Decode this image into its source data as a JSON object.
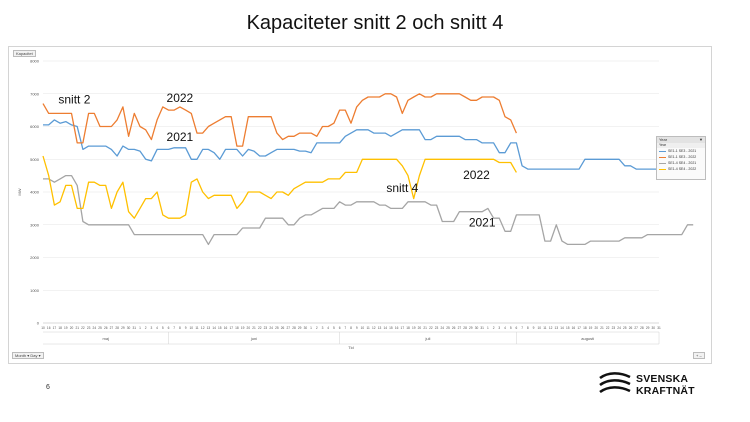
{
  "slide": {
    "title": "Kapaciteter snitt 2 och snitt 4",
    "page_number": "6",
    "logo": {
      "line1": "SVENSKA",
      "line2": "KRAFTNÄT"
    }
  },
  "ui": {
    "sheet_tab": "Kapacitet",
    "field_button": "Month ▾ Day ▾",
    "zoom_button": "+ –",
    "legend_header": "Year",
    "legend_subheader": "Year"
  },
  "chart_data": {
    "type": "line",
    "title": "Kapaciteter snitt 2 och snitt 4",
    "xlabel": "Tid",
    "ylabel": "MW",
    "ylim": [
      0,
      8000
    ],
    "yticks": [
      0,
      1000,
      2000,
      3000,
      4000,
      5000,
      6000,
      7000,
      8000
    ],
    "grid": true,
    "legend": "right",
    "months": [
      {
        "label": "maj",
        "start": 0,
        "end": 22
      },
      {
        "label": "juni",
        "start": 22,
        "end": 52
      },
      {
        "label": "juli",
        "start": 52,
        "end": 83
      },
      {
        "label": "augusti",
        "start": 83,
        "end": 114
      }
    ],
    "x_ticks": [
      "10",
      "16",
      "17",
      "18",
      "19",
      "20",
      "21",
      "22",
      "23",
      "24",
      "25",
      "26",
      "27",
      "28",
      "29",
      "30",
      "31",
      "1",
      "2",
      "3",
      "4",
      "5",
      "6",
      "7",
      "8",
      "9",
      "10",
      "11",
      "12",
      "13",
      "14",
      "15",
      "16",
      "17",
      "18",
      "19",
      "20",
      "21",
      "22",
      "23",
      "24",
      "25",
      "26",
      "27",
      "28",
      "29",
      "30",
      "1",
      "2",
      "3",
      "4",
      "5",
      "6",
      "7",
      "8",
      "9",
      "10",
      "11",
      "12",
      "13",
      "14",
      "15",
      "16",
      "17",
      "18",
      "19",
      "20",
      "21",
      "22",
      "23",
      "24",
      "25",
      "26",
      "27",
      "28",
      "29",
      "30",
      "31",
      "1",
      "2",
      "3",
      "4",
      "5",
      "6",
      "7",
      "8",
      "9",
      "10",
      "11",
      "12",
      "13",
      "14",
      "15",
      "16",
      "17",
      "18",
      "19",
      "20",
      "21",
      "22",
      "23",
      "24",
      "25",
      "26",
      "27",
      "28",
      "29",
      "30",
      "31"
    ],
    "annotations": [
      {
        "text": "snitt 2",
        "x": 5.5,
        "y": 6700
      },
      {
        "text": "2022",
        "x": 24,
        "y": 6750
      },
      {
        "text": "2021",
        "x": 24,
        "y": 5550
      },
      {
        "text": "snitt 4",
        "x": 63,
        "y": 4000
      },
      {
        "text": "2022",
        "x": 76,
        "y": 4400
      },
      {
        "text": "2021",
        "x": 77,
        "y": 2950
      }
    ],
    "series": [
      {
        "name": "SE1-1 SE3 - 2021",
        "color": "#5b9bd5",
        "x": [
          0,
          1,
          2,
          3,
          4,
          5,
          6,
          7,
          8,
          9,
          10,
          11,
          12,
          13,
          14,
          15,
          16,
          17,
          18,
          19,
          20,
          21,
          22,
          23,
          24,
          25,
          26,
          27,
          28,
          29,
          30,
          31,
          32,
          33,
          34,
          35,
          36,
          37,
          38,
          39,
          40,
          41,
          42,
          43,
          44,
          45,
          46,
          47,
          48,
          49,
          50,
          51,
          52,
          53,
          54,
          55,
          56,
          57,
          58,
          59,
          60,
          61,
          62,
          63,
          64,
          65,
          66,
          67,
          68,
          69,
          70,
          71,
          72,
          73,
          74,
          75,
          76,
          77,
          78,
          79,
          80,
          81,
          82,
          83,
          84,
          85,
          86,
          87,
          88,
          89,
          90,
          91,
          92,
          93,
          94,
          95,
          96,
          97,
          98,
          99,
          100,
          101,
          102,
          103,
          104,
          105,
          106,
          107,
          108,
          109,
          110,
          111,
          112,
          113,
          114
        ],
        "values": [
          6050,
          6050,
          6200,
          6100,
          6150,
          6050,
          6000,
          5300,
          5400,
          5400,
          5400,
          5400,
          5300,
          5100,
          5400,
          5300,
          5300,
          5250,
          5000,
          4950,
          5300,
          5300,
          5300,
          5350,
          5350,
          5350,
          5000,
          5000,
          5300,
          5300,
          5200,
          5000,
          5300,
          5300,
          5300,
          5100,
          5300,
          5250,
          5100,
          5100,
          5200,
          5300,
          5300,
          5300,
          5300,
          5250,
          5250,
          5200,
          5500,
          5500,
          5500,
          5500,
          5500,
          5700,
          5800,
          5900,
          5900,
          5900,
          5800,
          5800,
          5800,
          5700,
          5800,
          5900,
          5900,
          5900,
          5900,
          5600,
          5600,
          5700,
          5700,
          5700,
          5700,
          5700,
          5600,
          5600,
          5600,
          5500,
          5500,
          5500,
          5200,
          5200,
          5500,
          5500,
          4800,
          4700,
          4700,
          4700,
          4700,
          4700,
          4700,
          4700,
          4700,
          4700,
          4700,
          5000,
          5000,
          5000,
          5000,
          5000,
          5000,
          5000,
          4800,
          4800,
          4700,
          4700,
          4700,
          4700,
          4700,
          4700,
          4700,
          4700,
          4700,
          4800,
          4800
        ]
      },
      {
        "name": "SE1-1 SE3 - 2022",
        "color": "#ed7d31",
        "x": [
          0,
          1,
          2,
          3,
          4,
          5,
          6,
          7,
          8,
          9,
          10,
          11,
          12,
          13,
          14,
          15,
          16,
          17,
          18,
          19,
          20,
          21,
          22,
          23,
          24,
          25,
          26,
          27,
          28,
          29,
          30,
          31,
          32,
          33,
          34,
          35,
          36,
          37,
          38,
          39,
          40,
          41,
          42,
          43,
          44,
          45,
          46,
          47,
          48,
          49,
          50,
          51,
          52,
          53,
          54,
          55,
          56,
          57,
          58,
          59,
          60,
          61,
          62,
          63,
          64,
          65,
          66,
          67,
          68,
          69,
          70,
          71,
          72,
          73,
          74,
          75,
          76,
          77,
          78,
          79,
          80,
          81,
          82,
          83
        ],
        "values": [
          6700,
          6400,
          6400,
          6400,
          6400,
          6400,
          5500,
          5500,
          6400,
          6400,
          6000,
          6000,
          6000,
          6200,
          6600,
          5700,
          6400,
          6000,
          5900,
          5600,
          6200,
          6600,
          6500,
          6500,
          6600,
          6500,
          6400,
          5800,
          5800,
          6000,
          6100,
          6200,
          6300,
          6300,
          5400,
          5400,
          6300,
          6300,
          6300,
          6300,
          6300,
          5800,
          5600,
          5700,
          5700,
          5800,
          5800,
          5800,
          5700,
          6000,
          6000,
          6100,
          6500,
          6500,
          6100,
          6600,
          6800,
          6900,
          6900,
          6900,
          7000,
          7000,
          6900,
          6400,
          6800,
          6900,
          7000,
          6900,
          6900,
          7000,
          7000,
          7000,
          7000,
          7000,
          6900,
          6800,
          6800,
          6900,
          6900,
          6900,
          6800,
          6300,
          6200,
          5800
        ]
      },
      {
        "name": "SE1-4 SE4 - 2021",
        "color": "#a5a5a5",
        "x": [
          0,
          1,
          2,
          3,
          4,
          5,
          6,
          7,
          8,
          9,
          10,
          11,
          12,
          13,
          14,
          15,
          16,
          17,
          18,
          19,
          20,
          21,
          22,
          23,
          24,
          25,
          26,
          27,
          28,
          29,
          30,
          31,
          32,
          33,
          34,
          35,
          36,
          37,
          38,
          39,
          40,
          41,
          42,
          43,
          44,
          45,
          46,
          47,
          48,
          49,
          50,
          51,
          52,
          53,
          54,
          55,
          56,
          57,
          58,
          59,
          60,
          61,
          62,
          63,
          64,
          65,
          66,
          67,
          68,
          69,
          70,
          71,
          72,
          73,
          74,
          75,
          76,
          77,
          78,
          79,
          80,
          81,
          82,
          83,
          84,
          85,
          86,
          87,
          88,
          89,
          90,
          91,
          92,
          93,
          94,
          95,
          96,
          97,
          98,
          99,
          100,
          101,
          102,
          103,
          104,
          105,
          106,
          107,
          108,
          109,
          110,
          111,
          112,
          113,
          114
        ],
        "values": [
          4400,
          4400,
          4300,
          4400,
          4500,
          4500,
          4200,
          3100,
          3000,
          3000,
          3000,
          3000,
          3000,
          3000,
          3000,
          3000,
          2700,
          2700,
          2700,
          2700,
          2700,
          2700,
          2700,
          2700,
          2700,
          2700,
          2700,
          2700,
          2700,
          2400,
          2700,
          2700,
          2700,
          2700,
          2700,
          2900,
          2900,
          2900,
          2900,
          3200,
          3200,
          3200,
          3200,
          3000,
          3000,
          3200,
          3300,
          3300,
          3400,
          3500,
          3500,
          3500,
          3700,
          3600,
          3600,
          3700,
          3700,
          3700,
          3700,
          3600,
          3600,
          3500,
          3500,
          3500,
          3700,
          3700,
          3700,
          3700,
          3600,
          3600,
          3100,
          3100,
          3100,
          3400,
          3400,
          3400,
          3400,
          3400,
          3500,
          3200,
          3200,
          2800,
          2800,
          3300,
          3300,
          3300,
          3300,
          3300,
          2500,
          2500,
          3000,
          2500,
          2400,
          2400,
          2400,
          2400,
          2500,
          2500,
          2500,
          2500,
          2500,
          2500,
          2600,
          2600,
          2600,
          2600,
          2700,
          2700,
          2700,
          2700,
          2700,
          2700,
          2700,
          3000,
          3000
        ]
      },
      {
        "name": "SE1-4 SE4 - 2022",
        "color": "#ffc000",
        "x": [
          0,
          1,
          2,
          3,
          4,
          5,
          6,
          7,
          8,
          9,
          10,
          11,
          12,
          13,
          14,
          15,
          16,
          17,
          18,
          19,
          20,
          21,
          22,
          23,
          24,
          25,
          26,
          27,
          28,
          29,
          30,
          31,
          32,
          33,
          34,
          35,
          36,
          37,
          38,
          39,
          40,
          41,
          42,
          43,
          44,
          45,
          46,
          47,
          48,
          49,
          50,
          51,
          52,
          53,
          54,
          55,
          56,
          57,
          58,
          59,
          60,
          61,
          62,
          63,
          64,
          65,
          66,
          67,
          68,
          69,
          70,
          71,
          72,
          73,
          74,
          75,
          76,
          77,
          78,
          79,
          80,
          81,
          82,
          83
        ],
        "values": [
          5100,
          4500,
          3600,
          3700,
          4200,
          4200,
          3500,
          3500,
          4300,
          4300,
          4200,
          4200,
          3500,
          4000,
          4300,
          3400,
          3200,
          3500,
          3800,
          3800,
          4000,
          3300,
          3200,
          3200,
          3200,
          3300,
          4300,
          4400,
          4000,
          3800,
          3900,
          3900,
          3900,
          3900,
          3500,
          3700,
          4000,
          4000,
          4000,
          3900,
          3800,
          4000,
          4000,
          3900,
          4100,
          4200,
          4300,
          4300,
          4300,
          4300,
          4400,
          4400,
          4400,
          4600,
          4600,
          4600,
          5000,
          5000,
          5000,
          5000,
          5000,
          5000,
          5000,
          4800,
          4500,
          3800,
          4500,
          5000,
          5000,
          5000,
          5000,
          5000,
          5000,
          5000,
          5000,
          5000,
          5000,
          5000,
          5000,
          5000,
          4900,
          4900,
          4900,
          4600
        ]
      }
    ]
  }
}
